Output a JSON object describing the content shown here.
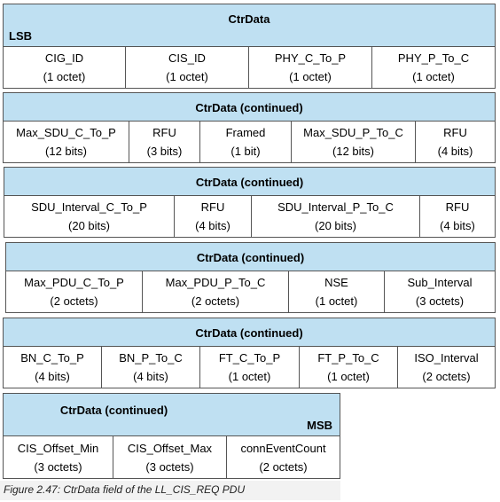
{
  "tables": [
    {
      "title": "CtrData",
      "lsb": "LSB",
      "fields": [
        {
          "name": "CIG_ID",
          "size": "(1 octet)"
        },
        {
          "name": "CIS_ID",
          "size": "(1 octet)"
        },
        {
          "name": "PHY_C_To_P",
          "size": "(1 octet)"
        },
        {
          "name": "PHY_P_To_C",
          "size": "(1 octet)"
        }
      ]
    },
    {
      "title": "CtrData (continued)",
      "fields": [
        {
          "name": "Max_SDU_C_To_P",
          "size": "(12 bits)"
        },
        {
          "name": "RFU",
          "size": "(3 bits)"
        },
        {
          "name": "Framed",
          "size": "(1 bit)"
        },
        {
          "name": "Max_SDU_P_To_C",
          "size": "(12 bits)"
        },
        {
          "name": "RFU",
          "size": "(4 bits)"
        }
      ]
    },
    {
      "title": "CtrData (continued)",
      "fields": [
        {
          "name": "SDU_Interval_C_To_P",
          "size": "(20 bits)"
        },
        {
          "name": "RFU",
          "size": "(4 bits)"
        },
        {
          "name": "SDU_Interval_P_To_C",
          "size": "(20 bits)"
        },
        {
          "name": "RFU",
          "size": "(4 bits)"
        }
      ]
    },
    {
      "title": "CtrData (continued)",
      "fields": [
        {
          "name": "Max_PDU_C_To_P",
          "size": "(2 octets)"
        },
        {
          "name": "Max_PDU_P_To_C",
          "size": "(2 octets)"
        },
        {
          "name": "NSE",
          "size": "(1 octet)"
        },
        {
          "name": "Sub_Interval",
          "size": "(3 octets)"
        }
      ]
    },
    {
      "title": "CtrData (continued)",
      "fields": [
        {
          "name": "BN_C_To_P",
          "size": "(4 bits)"
        },
        {
          "name": "BN_P_To_C",
          "size": "(4 bits)"
        },
        {
          "name": "FT_C_To_P",
          "size": "(1 octet)"
        },
        {
          "name": "FT_P_To_C",
          "size": "(1 octet)"
        },
        {
          "name": "ISO_Interval",
          "size": "(2 octets)"
        }
      ]
    },
    {
      "title": "CtrData (continued)",
      "msb": "MSB",
      "fields": [
        {
          "name": "CIS_Offset_Min",
          "size": "(3 octets)"
        },
        {
          "name": "CIS_Offset_Max",
          "size": "(3 octets)"
        },
        {
          "name": "connEventCount",
          "size": "(2 octets)"
        }
      ]
    }
  ],
  "caption": "Figure 2.47:  CtrData field of the LL_CIS_REQ PDU"
}
